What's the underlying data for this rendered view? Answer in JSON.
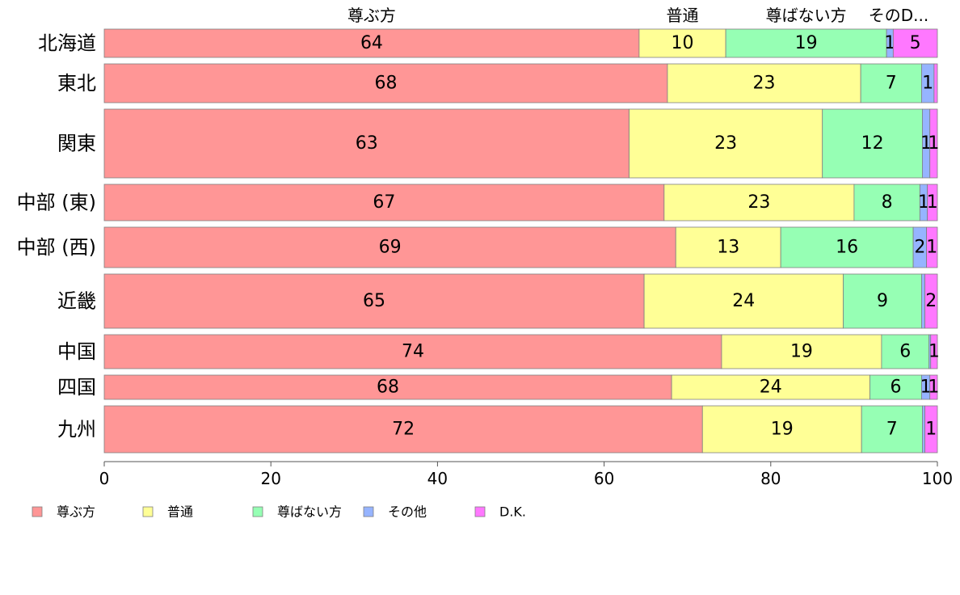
{
  "chart_data": {
    "type": "bar",
    "orientation": "horizontal",
    "stacked": true,
    "categories": [
      "北海道",
      "東北",
      "関東",
      "中部 (東)",
      "中部 (西)",
      "近畿",
      "中国",
      "四国",
      "九州"
    ],
    "series": [
      {
        "name": "尊ぶ方",
        "color": "#ff9696",
        "values": [
          64.2,
          67.6,
          63,
          67.2,
          68.6,
          64.8,
          74.1,
          68.1,
          71.8
        ]
      },
      {
        "name": "普通",
        "color": "#ffff96",
        "values": [
          10.4,
          23.2,
          23.2,
          22.8,
          12.6,
          23.9,
          19.2,
          23.8,
          19.1
        ]
      },
      {
        "name": "尊ばない方",
        "color": "#96ffb4",
        "values": [
          19.3,
          7.3,
          12,
          7.9,
          15.9,
          9.4,
          5.7,
          6.2,
          7.3
        ]
      },
      {
        "name": "その他",
        "color": "#96b4ff",
        "values": [
          0.8,
          1.5,
          0.9,
          0.9,
          1.6,
          0.4,
          0.2,
          1.0,
          0.3
        ]
      },
      {
        "name": "D.K.",
        "color": "#ff78ff",
        "values": [
          5.3,
          0.4,
          0.9,
          1.2,
          1.3,
          1.5,
          0.8,
          0.9,
          1.5
        ]
      }
    ],
    "segment_labels": [
      [
        "64",
        "10",
        "19",
        "1",
        "5"
      ],
      [
        "68",
        "23",
        "7",
        "1",
        ""
      ],
      [
        "63",
        "23",
        "12",
        "1",
        "1"
      ],
      [
        "67",
        "23",
        "8",
        "1",
        "1"
      ],
      [
        "69",
        "13",
        "16",
        "2",
        "1"
      ],
      [
        "65",
        "24",
        "9",
        "",
        "2"
      ],
      [
        "74",
        "19",
        "6",
        "",
        "1"
      ],
      [
        "68",
        "24",
        "6",
        "1",
        "1"
      ],
      [
        "72",
        "19",
        "7",
        "",
        "1"
      ]
    ],
    "row_weights": [
      35,
      48,
      85,
      45,
      50,
      67,
      42,
      30,
      58
    ],
    "top_labels": [
      "尊ぶ方",
      "普通",
      "尊ばない方",
      "そのD..."
    ],
    "xlim": [
      0,
      100
    ],
    "xticks": [
      0,
      20,
      40,
      60,
      80,
      100
    ],
    "legend": {
      "placement": "bottom-left",
      "entries": [
        "尊ぶ方",
        "普通",
        "尊ばない方",
        "その他",
        "D.K."
      ]
    },
    "grid": false
  }
}
